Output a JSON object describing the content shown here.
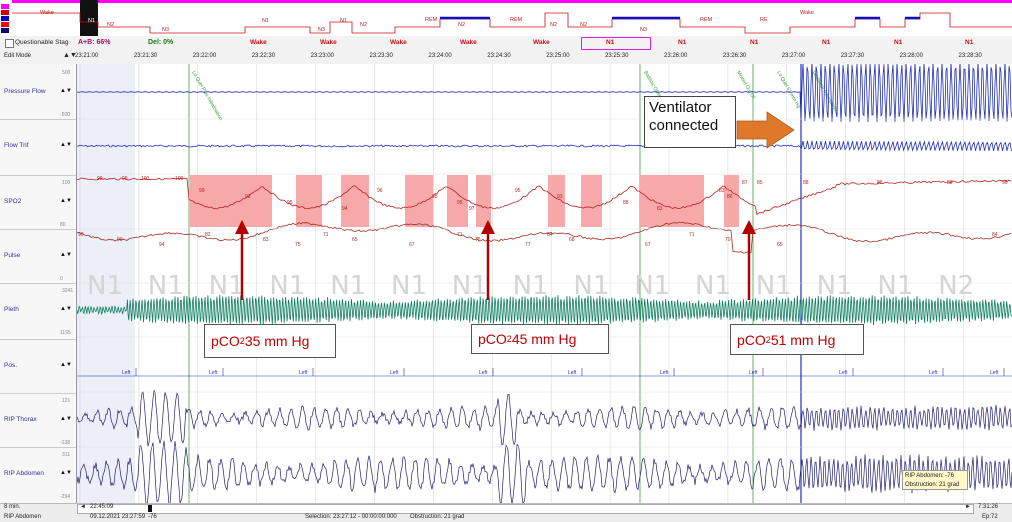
{
  "hypnogram": {
    "labels": [
      "Wake",
      "N1",
      "N2",
      "N3",
      "N1",
      "N3",
      "N1",
      "N2",
      "REM",
      "N2",
      "REM",
      "N2",
      "N2",
      "N3",
      "REM",
      "RE",
      "Wake"
    ],
    "legend_colors": [
      "#ff00ff",
      "#d00000",
      "#0000c0",
      "#ff0000",
      "#000080"
    ]
  },
  "stage_header": {
    "checkbox_label": "Questionable Stag",
    "ab_label": "A+B: 66%",
    "del_label": "Del: 0%",
    "stages": [
      "Wake",
      "Wake",
      "Wake",
      "Wake",
      "Wake",
      "N1",
      "N1",
      "N1",
      "N1",
      "N1",
      "N1"
    ]
  },
  "time_header": {
    "mode_label": "Edit Mode",
    "ticks": [
      "23:21:00",
      "23:21:30",
      "23:22:00",
      "23:22:30",
      "23:23:00",
      "23:23:30",
      "23:24:00",
      "23:24:30",
      "23:25:00",
      "23:25:30",
      "23:26:00",
      "23:26:30",
      "23:27:00",
      "23:27:30",
      "23:28:00",
      "23:28:30",
      "23:29:00"
    ]
  },
  "channels": [
    {
      "name": "Pressure Flow",
      "scale_top": "500",
      "scale_bottom": "-500"
    },
    {
      "name": "Flow Trif",
      "scale_top": "",
      "scale_bottom": ""
    },
    {
      "name": "SPO2",
      "scale_top": "100",
      "scale_bottom": "80"
    },
    {
      "name": "Pulse",
      "scale_top": "",
      "scale_bottom": "0"
    },
    {
      "name": "Pleth",
      "scale_top": "3241",
      "scale_bottom": "1195"
    },
    {
      "name": "Pos.",
      "scale_top": "",
      "scale_bottom": ""
    },
    {
      "name": "RIP Thorax",
      "scale_top": "121",
      "scale_bottom": "-138"
    },
    {
      "name": "RIP Abdomen",
      "scale_top": "311",
      "scale_bottom": "-294"
    }
  ],
  "spo2_values": [
    "99",
    "99",
    "100",
    "100",
    "99",
    "92",
    "95",
    "94",
    "96",
    "95",
    "95",
    "97",
    "95",
    "93",
    "88",
    "83",
    "83",
    "86",
    "87",
    "85",
    "88",
    "88",
    "88",
    "96"
  ],
  "pulse_values": [
    "90",
    "90",
    "94",
    "82",
    "83",
    "75",
    "71",
    "65",
    "67",
    "71",
    "75",
    "77",
    "64",
    "68",
    "67",
    "71",
    "70",
    "65",
    "84"
  ],
  "watermark_stages": [
    "N1",
    "N1",
    "N1",
    "N1",
    "N1",
    "N1",
    "N1",
    "N1",
    "N1",
    "N1",
    "N1",
    "N1",
    "N1",
    "N1",
    "N2"
  ],
  "position_label": "Left",
  "callouts": {
    "pco2_1": {
      "prefix": "pCO",
      "sub": "2",
      "suffix": " 35 mm Hg"
    },
    "pco2_2": {
      "prefix": "pCO",
      "sub": "2",
      "suffix": " 45 mm Hg"
    },
    "pco2_3": {
      "prefix": "pCO",
      "sub": "2",
      "suffix": " 51 mm Hg"
    },
    "ventilator": "Ventilator connected"
  },
  "event_labels": [
    "Lo Quel Plus Initialisation",
    "Ballistic Obstruc",
    "Moved Out Of",
    "Lo Quel 51 mm Hg",
    "Ventilator Interaction"
  ],
  "tooltip": {
    "line1": "RIP Abdomen: -76",
    "line2": "Obstruction: 21 grad"
  },
  "status": {
    "page_label": "8 min.",
    "scroll_time": "22:45:09",
    "right_time": "7:31:26",
    "channel": "RIP Abdomen",
    "date": "09.12.2021 23:27:59",
    "value": "-76",
    "selection": "Selection: 23:27:12 - 00:00:00:000",
    "obstruction": "Obstruction: 21 grad",
    "epoch": "Ep:72"
  },
  "colors": {
    "trace_blue": "#2030c0",
    "spo2_red": "#c02020",
    "pulse_red": "#a03020",
    "pleth_green": "#0f7f60",
    "desat_fill": "#f7a8a8",
    "arrow_red": "#b00000",
    "arrow_orange": "#e0782a"
  }
}
